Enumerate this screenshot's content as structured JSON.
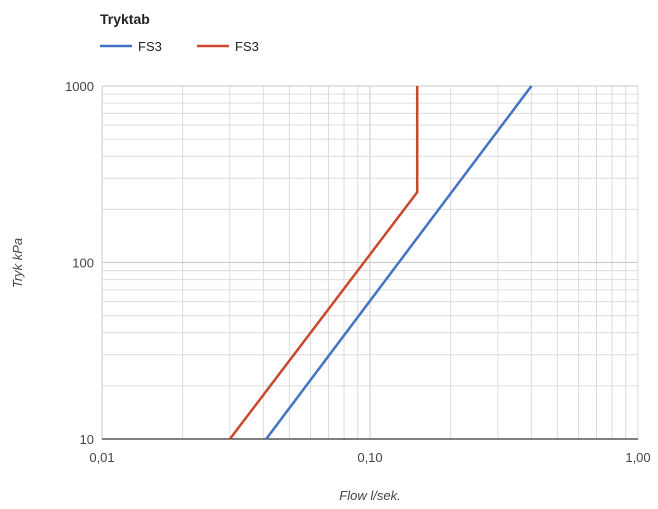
{
  "chart_data": {
    "type": "line",
    "title": "Tryktab",
    "xlabel": "Flow l/sek.",
    "ylabel": "Tryk kPa",
    "x_scale": "log",
    "y_scale": "log",
    "xlim": [
      0.01,
      1.0
    ],
    "ylim": [
      10,
      1000
    ],
    "x_ticks": [
      {
        "value": 0.01,
        "label": "0,01"
      },
      {
        "value": 0.1,
        "label": "0,10"
      },
      {
        "value": 1.0,
        "label": "1,00"
      }
    ],
    "y_ticks": [
      {
        "value": 10,
        "label": "10"
      },
      {
        "value": 100,
        "label": "100"
      },
      {
        "value": 1000,
        "label": "1000"
      }
    ],
    "grid": true,
    "legend": "top-left",
    "series": [
      {
        "name": "FS3",
        "color": "#4472c4",
        "points": [
          {
            "x": 0.041,
            "y": 10
          },
          {
            "x": 0.4,
            "y": 1000
          }
        ]
      },
      {
        "name": "FS3",
        "color": "#c9482b",
        "points": [
          {
            "x": 0.03,
            "y": 10
          },
          {
            "x": 0.15,
            "y": 250
          },
          {
            "x": 0.15,
            "y": 1000
          }
        ]
      }
    ]
  }
}
